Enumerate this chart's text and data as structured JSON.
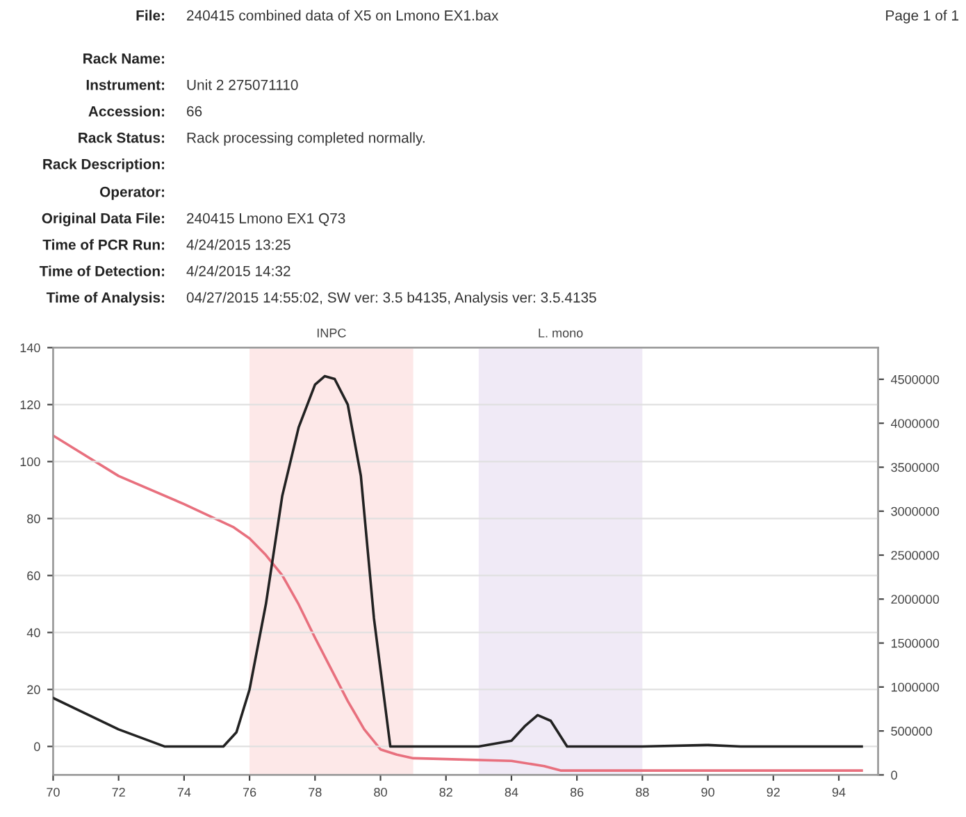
{
  "chart_data": {
    "type": "line",
    "annotations": [
      "File:",
      "240415 combined data of X5 on Lmono EX1.bax",
      "Page 1 of 1",
      "Rack Name:",
      "Instrument:",
      "Unit 2 275071110",
      "Accession:",
      "66",
      "Rack Status:",
      "Rack processing completed normally.",
      "Rack Description:",
      "Operator:",
      "Original Data File:",
      "240415 Lmono EX1 Q73",
      "Time of PCR Run:",
      "4/24/2015 13:25",
      "Time of Detection:",
      "4/24/2015 14:32",
      "Time of Analysis:",
      "04/27/2015 14:55:02, SW ver: 3.5 b4135, Analysis ver: 3.5.4135"
    ],
    "series": [
      {
        "color": "#222222",
        "x": [
          70,
          72,
          73.4,
          75.2,
          75.6,
          76,
          76.5,
          77,
          77.5,
          78,
          78.3,
          78.6,
          79,
          79.4,
          79.8,
          80.3,
          82,
          83,
          84,
          84.4,
          84.8,
          85.2,
          85.7,
          88,
          90,
          91,
          94.7
        ],
        "values": [
          17,
          6,
          0,
          0,
          5,
          20,
          50,
          88,
          112,
          127,
          130,
          129,
          120,
          95,
          45,
          0,
          0,
          0,
          2,
          7,
          11,
          9,
          0,
          0,
          0.5,
          0,
          0
        ]
      },
      {
        "color": "#e8707e",
        "axis": "y2",
        "x": [
          70,
          72,
          74,
          75.5,
          76,
          76.5,
          77,
          77.5,
          78,
          78.5,
          79,
          79.5,
          80,
          80.5,
          81,
          82,
          84,
          85,
          85.5,
          88,
          94.7
        ],
        "values": [
          3860000,
          3400000,
          3080000,
          2820000,
          2690000,
          2500000,
          2270000,
          1940000,
          1560000,
          1200000,
          840000,
          520000,
          290000,
          230000,
          190000,
          180000,
          160000,
          100000,
          50000,
          50000,
          50000
        ]
      }
    ],
    "bands": [
      {
        "axis": "x",
        "from": 76,
        "to": 81,
        "label": "INPC",
        "color": "#fde8e8"
      },
      {
        "axis": "x",
        "from": 83,
        "to": 88,
        "label": "L. mono",
        "color": "#f0eaf6"
      }
    ],
    "xlim": [
      70,
      95.2
    ],
    "xticks": [
      70,
      72,
      74,
      76,
      78,
      80,
      82,
      84,
      86,
      88,
      90,
      92,
      94
    ],
    "ylim": [
      -10,
      140
    ],
    "yticks": [
      0,
      20,
      40,
      60,
      80,
      100,
      120,
      140
    ],
    "y2lim": [
      0,
      4860000
    ],
    "y2ticks": [
      0,
      500000,
      1000000,
      1500000,
      2000000,
      2500000,
      3000000,
      3500000,
      4000000,
      4500000
    ],
    "grid": "y",
    "legend": false,
    "marker": "none",
    "line_style": "solid"
  }
}
